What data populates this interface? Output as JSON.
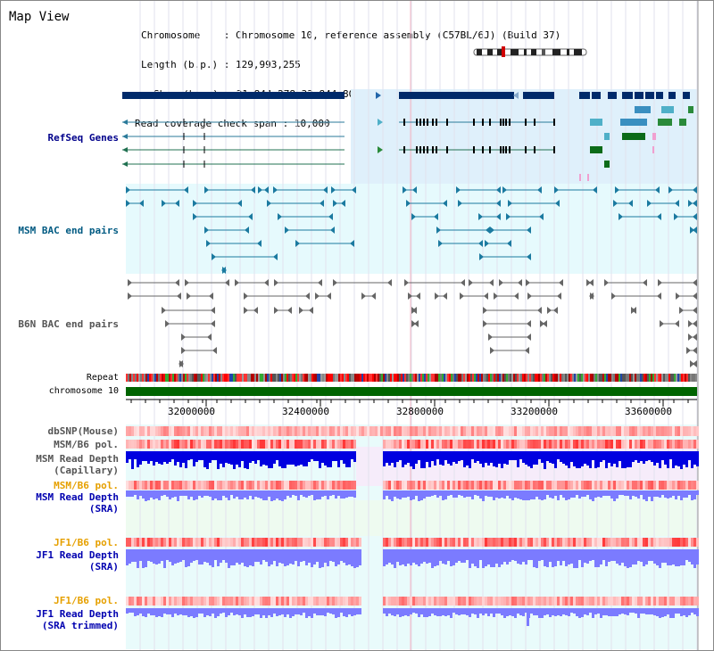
{
  "title": "Map View",
  "info": {
    "chromosome_key": "Chromosome",
    "chromosome_val": "Chromosome 10, reference assembly (C57BL/6J) (Build 37)",
    "length_key": "Length (b.p.)",
    "length_val": "129,993,255",
    "show_key": "Show (b.p.)",
    "show_val": "31,844,278-33,844,800 : 2,000,523 bp",
    "coverage_key": "Read coverage check span",
    "coverage_val": "10,000"
  },
  "tracks": {
    "refseq": "RefSeq Genes",
    "msm_bac": "MSM BAC end pairs",
    "b6n_bac": "B6N BAC end pairs",
    "repeat": "Repeat",
    "chromosome": "chromosome 10",
    "dbsnp": "dbSNP(Mouse)",
    "msm_b6_pol_1": "MSM/B6 pol.",
    "msm_read_depth_cap_1": "MSM Read Depth",
    "msm_read_depth_cap_2": "(Capillary)",
    "msm_b6_pol_2": "MSM/B6 pol.",
    "msm_read_depth_sra_1": "MSM Read Depth",
    "msm_read_depth_sra_2": "(SRA)",
    "jf1_b6_pol_1": "JF1/B6 pol.",
    "jf1_read_depth_1": "JF1 Read Depth",
    "jf1_read_depth_2": "(SRA)",
    "jf1_b6_pol_2": "JF1/B6 pol.",
    "jf1_read_depth_trim_1": "JF1 Read Depth",
    "jf1_read_depth_trim_2": "(SRA trimmed)"
  },
  "axis_ticks": [
    "32000000",
    "32400000",
    "32800000",
    "33200000",
    "33600000"
  ],
  "colors": {
    "label_blue": "#00008b",
    "label_teal": "#005a82",
    "label_orange": "#e6a000",
    "gene_navy": "#002a6a",
    "chrom_green": "#006400",
    "depth_blue": "#0000e0",
    "depth_light": "#7b7bff"
  }
}
